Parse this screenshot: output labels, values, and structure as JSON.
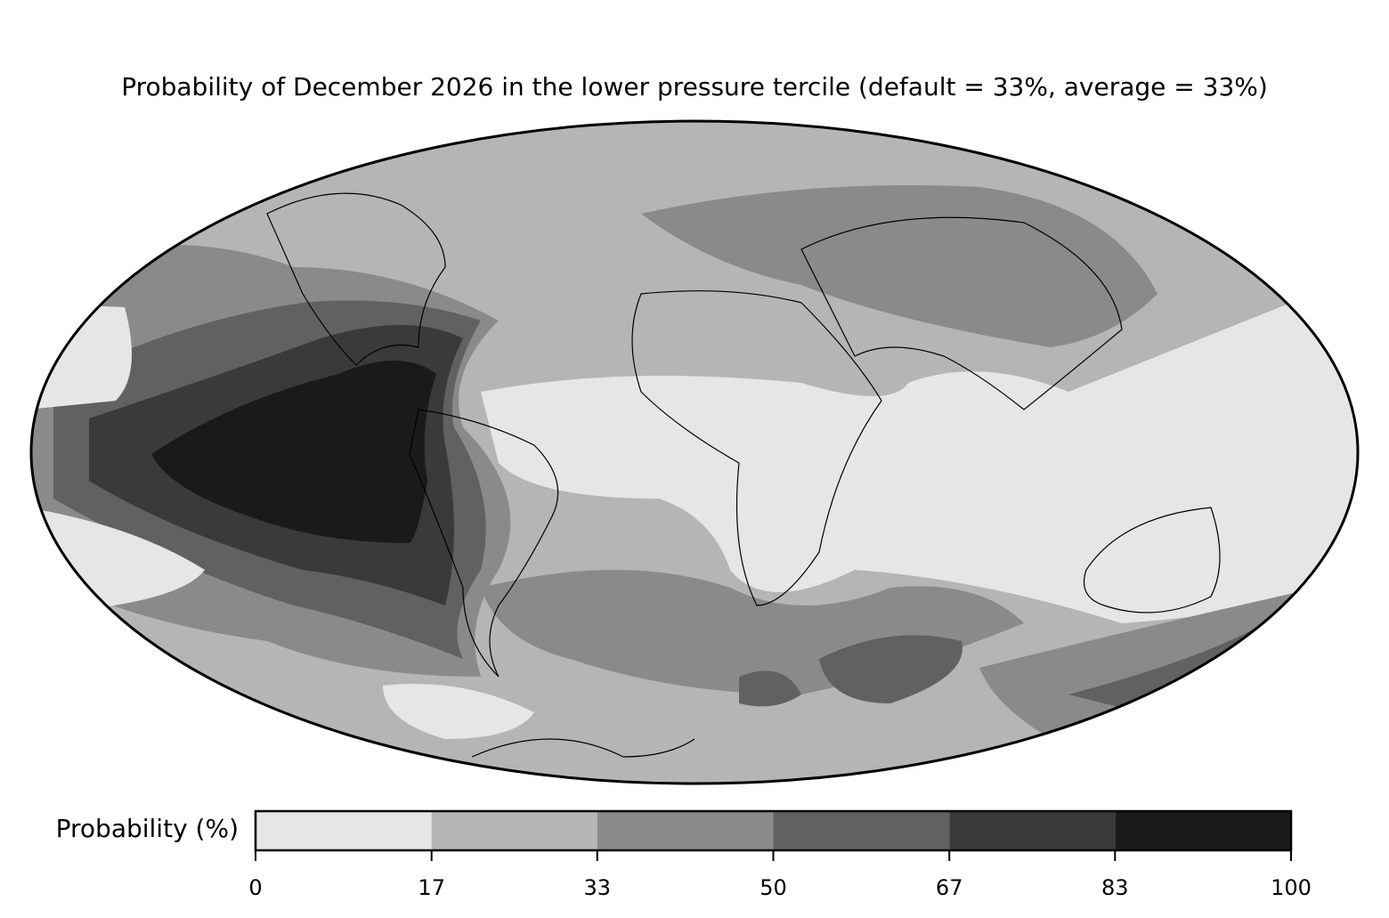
{
  "title": "Probability of December 2026 in the lower pressure tercile (default = 33%, average = 33%)",
  "colorbar": {
    "label": "Probability (%)",
    "lim": [
      0,
      100
    ],
    "ticks": [
      0,
      17,
      33,
      50,
      67,
      83,
      100
    ],
    "colors": [
      "#e6e6e6",
      "#b5b5b5",
      "#8a8a8a",
      "#616161",
      "#3a3a3a",
      "#1a1a1a"
    ]
  }
}
